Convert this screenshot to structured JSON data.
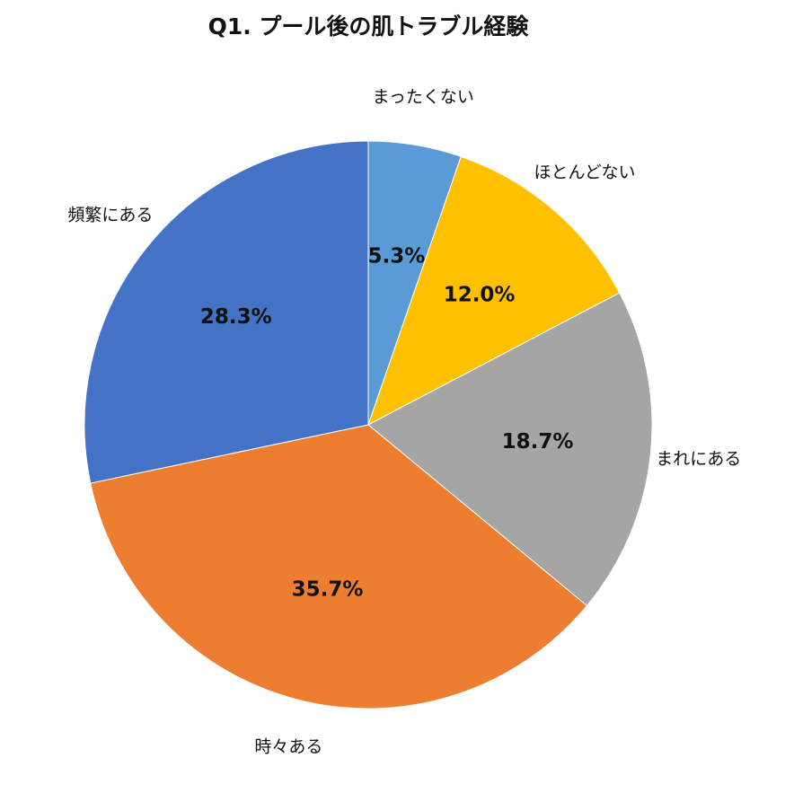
{
  "chart_data": {
    "type": "pie",
    "title": "Q1. プール後の肌トラブル経験",
    "categories": [
      "まったくない",
      "ほとんどない",
      "まれにある",
      "時々ある",
      "頻繁にある"
    ],
    "values": [
      5.3,
      12.0,
      18.7,
      35.7,
      28.3
    ],
    "value_labels": [
      "5.3%",
      "12.0%",
      "18.7%",
      "35.7%",
      "28.3%"
    ],
    "colors": [
      "#5B9BD5",
      "#FFC000",
      "#A5A5A5",
      "#ED7D31",
      "#4472C4"
    ],
    "start_angle": "12 o'clock",
    "direction": "clockwise",
    "legend": "none"
  }
}
